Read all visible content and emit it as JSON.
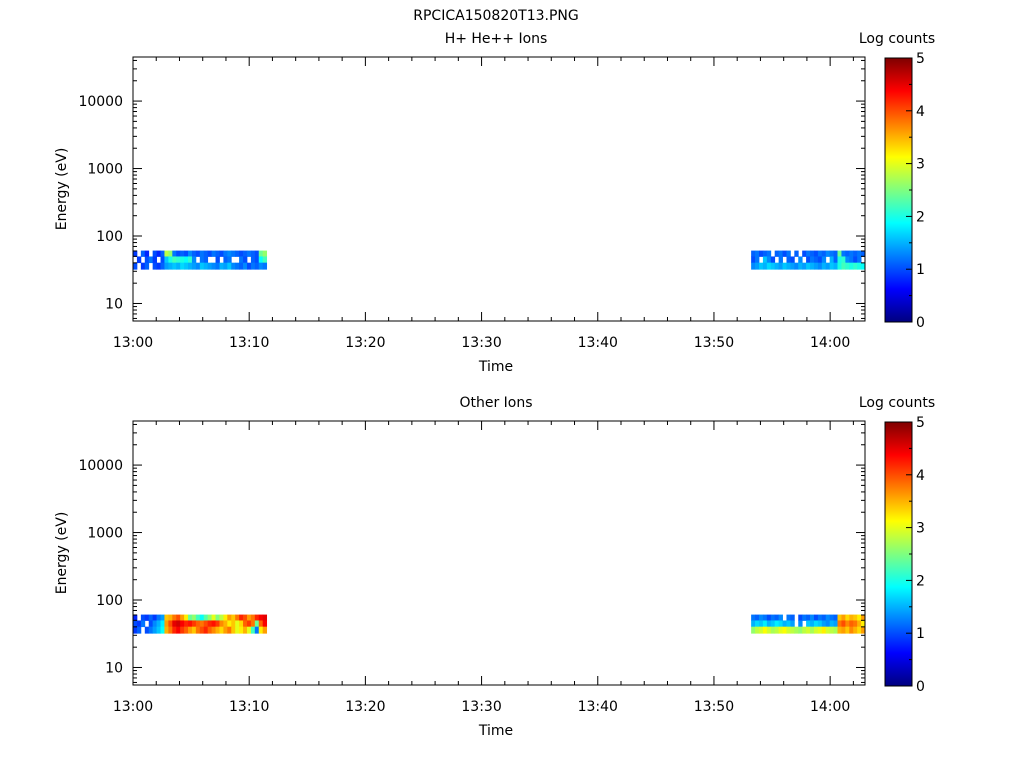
{
  "figure": {
    "title": "RPCICA150820T13.PNG"
  },
  "colormap_stops": [
    "#00007f",
    "#0000ff",
    "#007fff",
    "#00ffff",
    "#7fff7f",
    "#ffff00",
    "#ff7f00",
    "#ff0000",
    "#7f0000"
  ],
  "chart_data": [
    {
      "type": "heatmap",
      "title": "H+ He++ Ions",
      "xlabel": "Time",
      "ylabel": "Energy (eV)",
      "x_ticks": [
        "13:00",
        "13:10",
        "13:20",
        "13:30",
        "13:40",
        "13:50",
        "14:00"
      ],
      "x_range": [
        "13:00",
        "14:03"
      ],
      "y_scale": "log",
      "y_ticks": [
        10,
        100,
        1000,
        10000
      ],
      "y_tick_labels": [
        "10",
        "100",
        "1000",
        "10000"
      ],
      "ylim": [
        5.5,
        45000
      ],
      "colorbar": {
        "label": "Log counts",
        "range": [
          0,
          5
        ],
        "ticks": [
          "0",
          "1",
          "2",
          "3",
          "4",
          "5"
        ]
      },
      "energy_bins": [
        55,
        45,
        36
      ],
      "blocks": [
        {
          "start": "13:00",
          "end": "13:11.5",
          "values": [
            [
              0.9,
              -1,
              1.1,
              0.8,
              -1,
              1.0,
              0.8,
              1.1,
              2.8,
              2.6,
              1.2,
              1.0,
              1.1,
              1.0,
              1.3,
              1.1,
              1.0,
              1.2,
              1.1,
              1.0,
              1.2,
              1.1,
              1.0,
              1.2,
              1.3,
              1.2,
              1.1,
              1.0,
              1.1,
              1.2,
              1.1,
              1.0,
              2.4,
              2.6
            ],
            [
              -1,
              0.9,
              -1,
              1.0,
              1.2,
              0.9,
              -1,
              1.0,
              1.6,
              2.0,
              2.2,
              2.1,
              2.0,
              1.9,
              2.1,
              1.3,
              -1,
              1.2,
              1.1,
              -1,
              -1,
              1.0,
              -1,
              1.1,
              1.2,
              -1,
              -1,
              1.2,
              1.0,
              -1,
              1.1,
              1.0,
              1.9,
              2.2
            ],
            [
              1.0,
              -1,
              0.9,
              1.1,
              -1,
              1.0,
              0.9,
              1.1,
              1.4,
              1.5,
              1.6,
              1.5,
              1.7,
              1.6,
              1.5,
              1.4,
              1.3,
              1.6,
              1.5,
              1.4,
              1.3,
              1.2,
              1.5,
              1.4,
              1.6,
              1.3,
              1.2,
              1.1,
              1.3,
              1.0,
              1.2,
              1.1,
              1.3,
              1.2
            ]
          ]
        },
        {
          "start": "13:53.2",
          "end": "14:03",
          "values": [
            [
              1.1,
              1.2,
              1.0,
              1.1,
              1.2,
              -1,
              1.1,
              1.2,
              1.0,
              1.2,
              -1,
              1.1,
              -1,
              1.0,
              1.2,
              1.1,
              1.0,
              1.2,
              1.1,
              1.3,
              1.2,
              1.1,
              2.4,
              1.2,
              1.1,
              1.2,
              1.1,
              1.2,
              1.1
            ],
            [
              1.0,
              1.2,
              -1,
              1.6,
              1.3,
              1.0,
              -1,
              1.2,
              -1,
              1.1,
              1.0,
              -1,
              1.3,
              -1,
              1.0,
              1.2,
              1.1,
              1.0,
              1.3,
              -1,
              1.5,
              1.1,
              2.0,
              2.1,
              1.3,
              1.2,
              1.0,
              1.2,
              -1
            ],
            [
              1.3,
              1.4,
              1.6,
              1.5,
              1.7,
              1.6,
              1.5,
              1.4,
              1.6,
              1.5,
              1.4,
              1.3,
              1.5,
              1.4,
              1.6,
              1.5,
              1.4,
              1.3,
              1.5,
              1.4,
              1.6,
              1.5,
              2.0,
              2.2,
              2.1,
              2.0,
              2.1,
              2.0,
              1.9
            ]
          ]
        }
      ]
    },
    {
      "type": "heatmap",
      "title": "Other Ions",
      "xlabel": "Time",
      "ylabel": "Energy (eV)",
      "x_ticks": [
        "13:00",
        "13:10",
        "13:20",
        "13:30",
        "13:40",
        "13:50",
        "14:00"
      ],
      "x_range": [
        "13:00",
        "14:03"
      ],
      "y_scale": "log",
      "y_ticks": [
        10,
        100,
        1000,
        10000
      ],
      "y_tick_labels": [
        "10",
        "100",
        "1000",
        "10000"
      ],
      "ylim": [
        5.5,
        45000
      ],
      "colorbar": {
        "label": "Log counts",
        "range": [
          0,
          5
        ],
        "ticks": [
          "0",
          "1",
          "2",
          "3",
          "4",
          "5"
        ]
      },
      "energy_bins": [
        55,
        45,
        36
      ],
      "blocks": [
        {
          "start": "13:00",
          "end": "13:11.5",
          "values": [
            [
              0.8,
              -1,
              1.0,
              0.9,
              1.1,
              0.9,
              1.2,
              1.4,
              3.4,
              3.5,
              3.8,
              4.0,
              3.6,
              3.2,
              2.4,
              2.6,
              2.2,
              1.9,
              2.3,
              2.6,
              3.0,
              2.5,
              2.8,
              3.2,
              3.6,
              3.4,
              3.8,
              4.2,
              4.0,
              3.6,
              3.8,
              4.2,
              4.4,
              4.5
            ],
            [
              1.0,
              0.9,
              1.2,
              -1,
              1.0,
              1.3,
              1.5,
              1.8,
              3.6,
              4.0,
              4.5,
              4.6,
              4.4,
              4.2,
              4.3,
              4.1,
              3.9,
              3.8,
              4.0,
              4.2,
              4.3,
              4.1,
              3.7,
              3.5,
              3.2,
              3.4,
              3.0,
              3.3,
              3.9,
              4.1,
              3.8,
              2.4,
              3.9,
              4.4
            ],
            [
              0.9,
              1.1,
              -1,
              1.0,
              1.2,
              1.4,
              1.6,
              1.9,
              3.5,
              3.8,
              4.2,
              4.4,
              4.1,
              3.9,
              3.6,
              3.4,
              3.8,
              4.0,
              4.2,
              3.9,
              3.7,
              3.5,
              3.3,
              3.6,
              3.8,
              3.4,
              3.0,
              3.2,
              3.5,
              3.0,
              2.2,
              1.2,
              3.2,
              3.6
            ]
          ]
        },
        {
          "start": "13:53.2",
          "end": "14:03",
          "values": [
            [
              1.2,
              1.1,
              1.3,
              1.2,
              1.0,
              1.2,
              1.1,
              1.3,
              -1,
              1.2,
              1.1,
              -1,
              1.0,
              1.2,
              1.1,
              1.3,
              1.0,
              1.2,
              1.1,
              1.3,
              1.2,
              1.1,
              3.4,
              3.6,
              3.3,
              3.5,
              3.4,
              3.2,
              3.6
            ],
            [
              1.5,
              1.7,
              1.6,
              1.8,
              1.5,
              1.6,
              1.8,
              1.7,
              1.5,
              1.6,
              1.4,
              -1,
              1.3,
              -1,
              1.6,
              1.5,
              1.7,
              1.6,
              1.4,
              1.3,
              1.5,
              1.4,
              3.8,
              4.0,
              3.7,
              3.9,
              3.8,
              3.5,
              3.2
            ],
            [
              2.6,
              2.8,
              2.9,
              3.1,
              2.9,
              2.7,
              2.8,
              3.0,
              3.1,
              2.9,
              2.8,
              2.7,
              2.6,
              2.8,
              2.9,
              2.7,
              2.9,
              3.0,
              3.2,
              2.9,
              2.8,
              2.7,
              3.5,
              3.6,
              3.4,
              3.7,
              3.5,
              3.3,
              3.6
            ]
          ]
        }
      ]
    }
  ]
}
